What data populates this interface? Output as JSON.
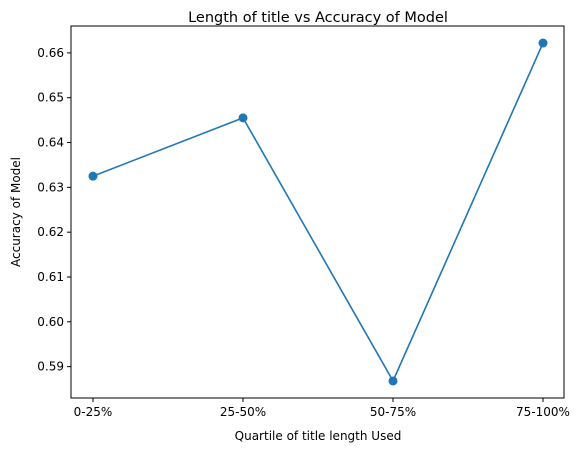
{
  "chart_data": {
    "type": "line",
    "title": "Length of title vs Accuracy of Model",
    "xlabel": "Quartile of title length Used",
    "ylabel": "Accuracy of Model",
    "categories": [
      "0-25%",
      "25-50%",
      "50-75%",
      "75-100%"
    ],
    "series": [
      {
        "values": [
          0.6325,
          0.6455,
          0.5868,
          0.6622
        ]
      }
    ],
    "yticks": [
      0.59,
      0.6,
      0.61,
      0.62,
      0.63,
      0.64,
      0.65,
      0.66
    ],
    "ytick_labels": [
      "0.59",
      "0.60",
      "0.61",
      "0.62",
      "0.63",
      "0.64",
      "0.65",
      "0.66"
    ],
    "ylim": [
      0.583,
      0.666
    ],
    "grid": false,
    "legend": "none",
    "colors": {
      "line": "#1f77b4",
      "marker": "#1f77b4"
    }
  }
}
